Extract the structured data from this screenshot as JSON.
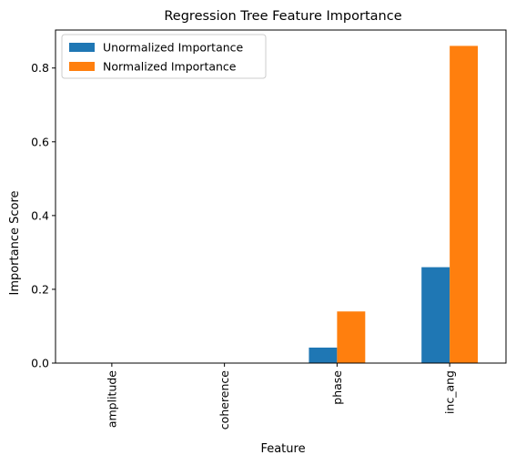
{
  "chart_data": {
    "type": "bar",
    "title": "Regression Tree Feature Importance",
    "xlabel": "Feature",
    "ylabel": "Importance Score",
    "categories": [
      "amplitude",
      "coherence",
      "phase",
      "inc_ang"
    ],
    "series": [
      {
        "name": "Unormalized Importance",
        "color": "#1f77b4",
        "values": [
          0.0,
          0.0,
          0.042,
          0.26
        ]
      },
      {
        "name": "Normalized Importance",
        "color": "#ff7f0e",
        "values": [
          0.0,
          0.0,
          0.14,
          0.86
        ]
      }
    ],
    "ylim": [
      0,
      0.903
    ],
    "yticks": [
      0.0,
      0.2,
      0.4,
      0.6,
      0.8
    ],
    "ytick_labels": [
      "0.0",
      "0.2",
      "0.4",
      "0.6",
      "0.8"
    ],
    "legend_position": "top-left",
    "grid": false
  }
}
